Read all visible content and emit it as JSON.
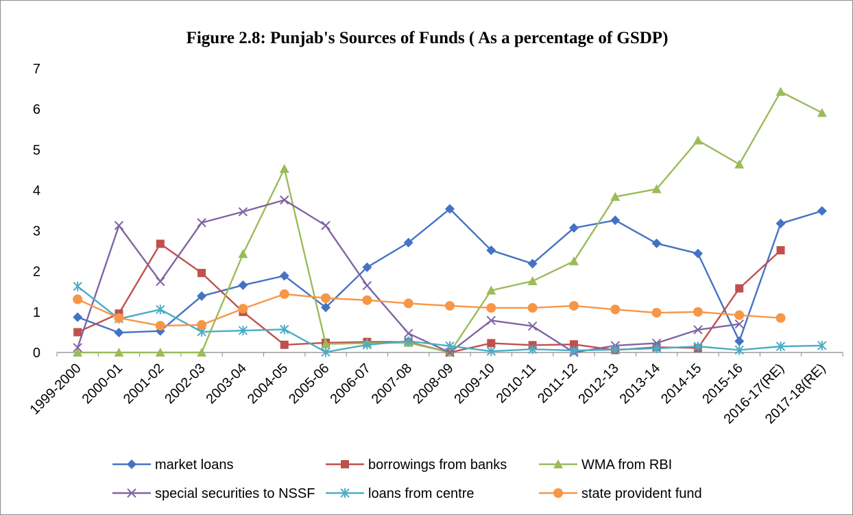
{
  "chart_data": {
    "type": "line",
    "title": "Figure 2.8: Punjab's Sources of Funds ( As a percentage of GSDP)",
    "xlabel": "",
    "ylabel": "",
    "ylim": [
      0,
      7
    ],
    "yticks": [
      "0",
      "1",
      "2",
      "3",
      "4",
      "5",
      "6",
      "7"
    ],
    "grid": false,
    "legend_position": "bottom",
    "categories": [
      "1999-2000",
      "2000-01",
      "2001-02",
      "2002-03",
      "2003-04",
      "2004-05",
      "2005-06",
      "2006-07",
      "2007-08",
      "2008-09",
      "2009-10",
      "2010-11",
      "2011-12",
      "2012-13",
      "2013-14",
      "2014-15",
      "2015-16",
      "2016-17(RE)",
      "2017-18(RE)"
    ],
    "series": [
      {
        "name": "market loans",
        "color": "#4472c4",
        "marker": "diamond",
        "values": [
          0.87,
          0.49,
          0.53,
          1.39,
          1.66,
          1.89,
          1.11,
          2.1,
          2.71,
          3.54,
          2.52,
          2.19,
          3.07,
          3.26,
          2.69,
          2.44,
          0.28,
          3.18,
          3.49
        ]
      },
      {
        "name": "borrowings from banks",
        "color": "#c0504d",
        "marker": "square",
        "values": [
          0.5,
          0.96,
          2.68,
          1.96,
          1.0,
          0.19,
          0.24,
          0.26,
          0.26,
          0.0,
          0.23,
          0.18,
          0.2,
          0.06,
          0.13,
          0.11,
          1.58,
          2.52,
          null
        ]
      },
      {
        "name": "WMA from RBI",
        "color": "#9bbb59",
        "marker": "triangle",
        "values": [
          0.0,
          0.0,
          0.0,
          0.0,
          2.43,
          4.53,
          0.21,
          0.23,
          0.24,
          0.0,
          1.53,
          1.76,
          2.25,
          3.84,
          4.03,
          5.23,
          4.64,
          6.43,
          5.91
        ]
      },
      {
        "name": "special securities to NSSF",
        "color": "#8064a2",
        "marker": "x",
        "values": [
          0.12,
          3.13,
          1.75,
          3.2,
          3.47,
          3.76,
          3.13,
          1.65,
          0.47,
          0.0,
          0.79,
          0.65,
          0.0,
          0.17,
          0.23,
          0.56,
          0.7,
          null,
          null
        ]
      },
      {
        "name": "loans from centre",
        "color": "#4bacc6",
        "marker": "asterisk",
        "values": [
          1.63,
          0.83,
          1.06,
          0.51,
          0.54,
          0.57,
          0.01,
          0.19,
          0.28,
          0.16,
          0.03,
          0.08,
          0.05,
          0.07,
          0.1,
          0.15,
          0.06,
          0.15,
          0.17
        ]
      },
      {
        "name": "state provident fund",
        "color": "#f79646",
        "marker": "circle",
        "values": [
          1.31,
          0.85,
          0.66,
          0.68,
          1.08,
          1.44,
          1.34,
          1.29,
          1.21,
          1.15,
          1.1,
          1.1,
          1.15,
          1.06,
          0.98,
          1.0,
          0.92,
          0.85,
          null
        ]
      }
    ]
  }
}
